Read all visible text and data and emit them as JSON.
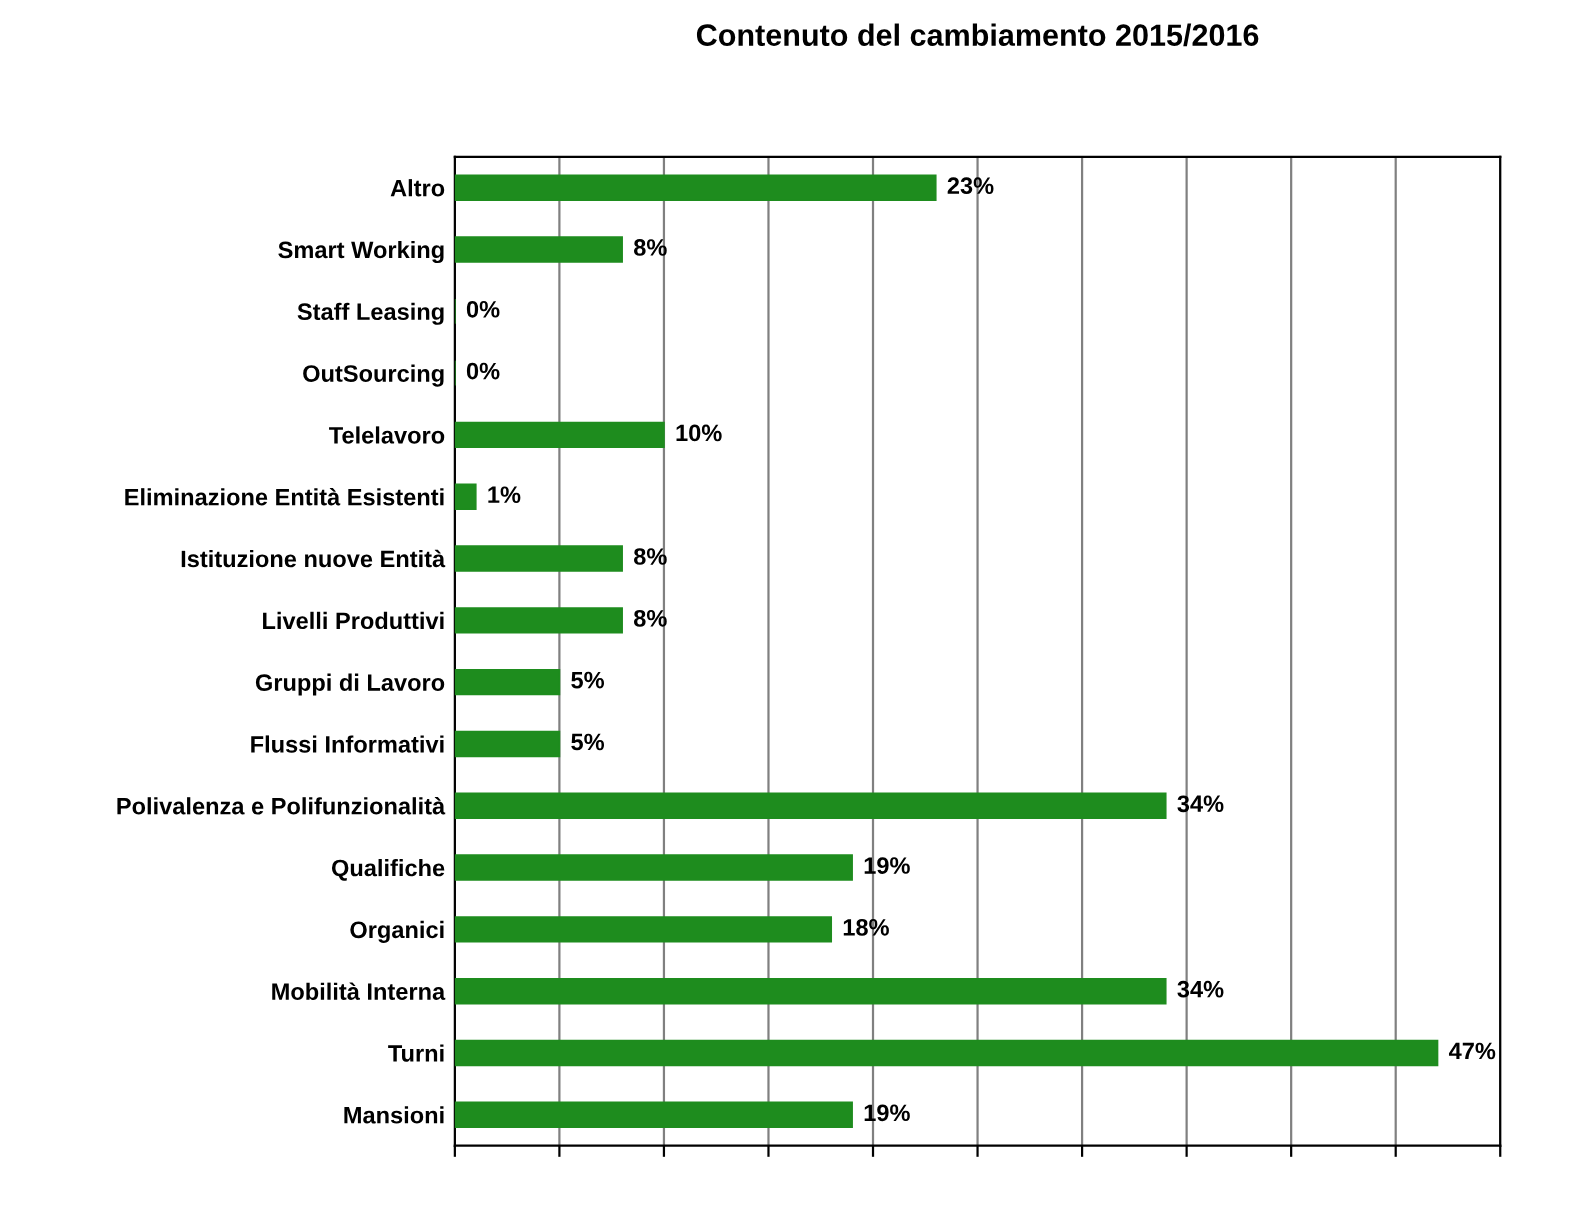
{
  "chart_data": {
    "type": "bar",
    "orientation": "horizontal",
    "title": "Contenuto del cambiamento 2015/2016",
    "categories": [
      "Altro",
      "Smart Working",
      "Staff Leasing",
      "OutSourcing",
      "Telelavoro",
      "Eliminazione Entità Esistenti",
      "Istituzione nuove Entità",
      "Livelli Produttivi",
      "Gruppi di Lavoro",
      "Flussi Informativi",
      "Polivalenza e Polifunzionalità",
      "Qualifiche",
      "Organici",
      "Mobilità Interna",
      "Turni",
      "Mansioni"
    ],
    "values": [
      23,
      8,
      0,
      0,
      10,
      1,
      8,
      8,
      5,
      5,
      34,
      19,
      18,
      34,
      47,
      19
    ],
    "value_labels": [
      "23%",
      "8%",
      "0%",
      "0%",
      "10%",
      "1%",
      "8%",
      "8%",
      "5%",
      "5%",
      "34%",
      "19%",
      "18%",
      "34%",
      "47%",
      "19%"
    ],
    "color": "#1e8c1e",
    "xlim": [
      0,
      50
    ],
    "xticks": [
      {
        "value": 0,
        "label": null
      },
      {
        "value": 5,
        "label": null
      },
      {
        "value": 10,
        "label": null
      },
      {
        "value": 15,
        "label": null
      },
      {
        "value": 20,
        "label": null
      },
      {
        "value": 25,
        "label": null
      },
      {
        "value": 30,
        "label": null
      },
      {
        "value": 35,
        "label": null
      },
      {
        "value": 40,
        "label": null
      },
      {
        "value": 45,
        "label": null
      },
      {
        "value": 50,
        "label": null
      }
    ],
    "grid": "x"
  }
}
